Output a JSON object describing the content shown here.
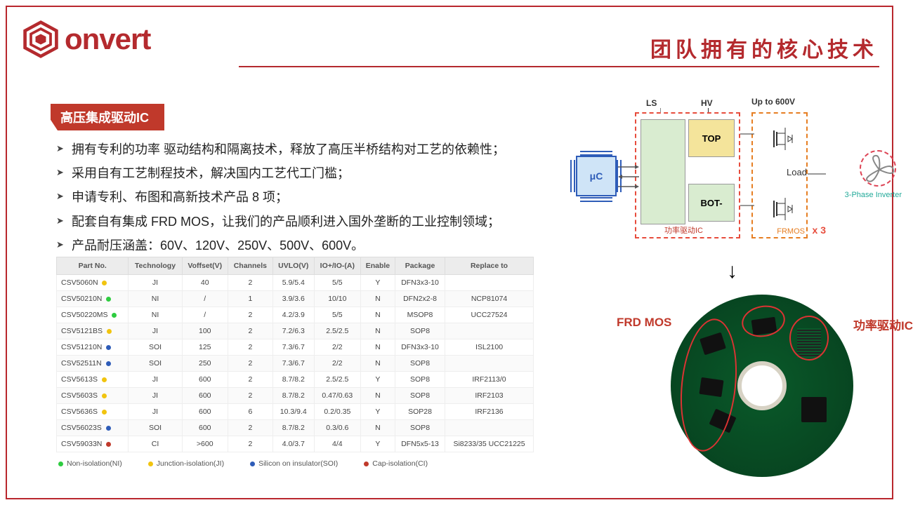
{
  "brand": {
    "name": "onvert",
    "color": "#b42a2e"
  },
  "page_title": "团队拥有的核心技术",
  "section_tag": "高压集成驱动IC",
  "bullets": [
    "拥有专利的功率 驱动结构和隔离技术，释放了高压半桥结构对工艺的依赖性；",
    "采用自有工艺制程技术，解决国内工艺代工门槛；",
    "申请专利、布图和高新技术产品 8 项；",
    "配套自有集成 FRD MOS，让我们的产品顺利进入国外垄断的工业控制领域；",
    "产品耐压涵盖：60V、120V、250V、500V、600V。"
  ],
  "table": {
    "columns": [
      "Part No.",
      "Technology",
      "Voffset(V)",
      "Channels",
      "UVLO(V)",
      "IO+/IO-(A)",
      "Enable",
      "Package",
      "Replace to"
    ],
    "rows": [
      {
        "pn": "CSV5060N",
        "dot": "yellow",
        "tech": "JI",
        "voff": "40",
        "ch": "2",
        "uvlo": "5.9/5.4",
        "io": "5/5",
        "en": "Y",
        "pkg": "DFN3x3-10",
        "rep": ""
      },
      {
        "pn": "CSV50210N",
        "dot": "green",
        "tech": "NI",
        "voff": "/",
        "ch": "1",
        "uvlo": "3.9/3.6",
        "io": "10/10",
        "en": "N",
        "pkg": "DFN2x2-8",
        "rep": "NCP81074"
      },
      {
        "pn": "CSV50220MS",
        "dot": "green",
        "tech": "NI",
        "voff": "/",
        "ch": "2",
        "uvlo": "4.2/3.9",
        "io": "5/5",
        "en": "N",
        "pkg": "MSOP8",
        "rep": "UCC27524"
      },
      {
        "pn": "CSV5121BS",
        "dot": "yellow",
        "tech": "JI",
        "voff": "100",
        "ch": "2",
        "uvlo": "7.2/6.3",
        "io": "2.5/2.5",
        "en": "N",
        "pkg": "SOP8",
        "rep": ""
      },
      {
        "pn": "CSV51210N",
        "dot": "blue",
        "tech": "SOI",
        "voff": "125",
        "ch": "2",
        "uvlo": "7.3/6.7",
        "io": "2/2",
        "en": "N",
        "pkg": "DFN3x3-10",
        "rep": "ISL2100"
      },
      {
        "pn": "CSV52511N",
        "dot": "blue",
        "tech": "SOI",
        "voff": "250",
        "ch": "2",
        "uvlo": "7.3/6.7",
        "io": "2/2",
        "en": "N",
        "pkg": "SOP8",
        "rep": ""
      },
      {
        "pn": "CSV5613S",
        "dot": "yellow",
        "tech": "JI",
        "voff": "600",
        "ch": "2",
        "uvlo": "8.7/8.2",
        "io": "2.5/2.5",
        "en": "Y",
        "pkg": "SOP8",
        "rep": "IRF2113/0"
      },
      {
        "pn": "CSV5603S",
        "dot": "yellow",
        "tech": "JI",
        "voff": "600",
        "ch": "2",
        "uvlo": "8.7/8.2",
        "io": "0.47/0.63",
        "en": "N",
        "pkg": "SOP8",
        "rep": "IRF2103"
      },
      {
        "pn": "CSV5636S",
        "dot": "yellow",
        "tech": "JI",
        "voff": "600",
        "ch": "6",
        "uvlo": "10.3/9.4",
        "io": "0.2/0.35",
        "en": "Y",
        "pkg": "SOP28",
        "rep": "IRF2136"
      },
      {
        "pn": "CSV56023S",
        "dot": "blue",
        "tech": "SOI",
        "voff": "600",
        "ch": "2",
        "uvlo": "8.7/8.2",
        "io": "0.3/0.6",
        "en": "N",
        "pkg": "SOP8",
        "rep": ""
      },
      {
        "pn": "CSV59033N",
        "dot": "red",
        "tech": "CI",
        "voff": ">600",
        "ch": "2",
        "uvlo": "4.0/3.7",
        "io": "4/4",
        "en": "Y",
        "pkg": "DFN5x5-13",
        "rep": "Si8233/35 UCC21225"
      }
    ],
    "legend": [
      {
        "color": "green",
        "text": "Non-isolation(NI)"
      },
      {
        "color": "yellow",
        "text": "Junction-isolation(JI)"
      },
      {
        "color": "blue",
        "text": "Silicon on insulator(SOI)"
      },
      {
        "color": "red",
        "text": "Cap-isolation(CI)"
      }
    ]
  },
  "diagram": {
    "uc": "μC",
    "top": "TOP",
    "bot": "BOT-",
    "driver_label": "功率驱动IC",
    "inverter_label": "FRMOS",
    "ls": "LS",
    "hv": "HV",
    "uptov": "Up to 600V",
    "load": "Load",
    "phase": "3-Phase Inverter",
    "x3": "x 3"
  },
  "pcb": {
    "left_label": "FRD MOS",
    "right_label": "功率驱动IC"
  }
}
